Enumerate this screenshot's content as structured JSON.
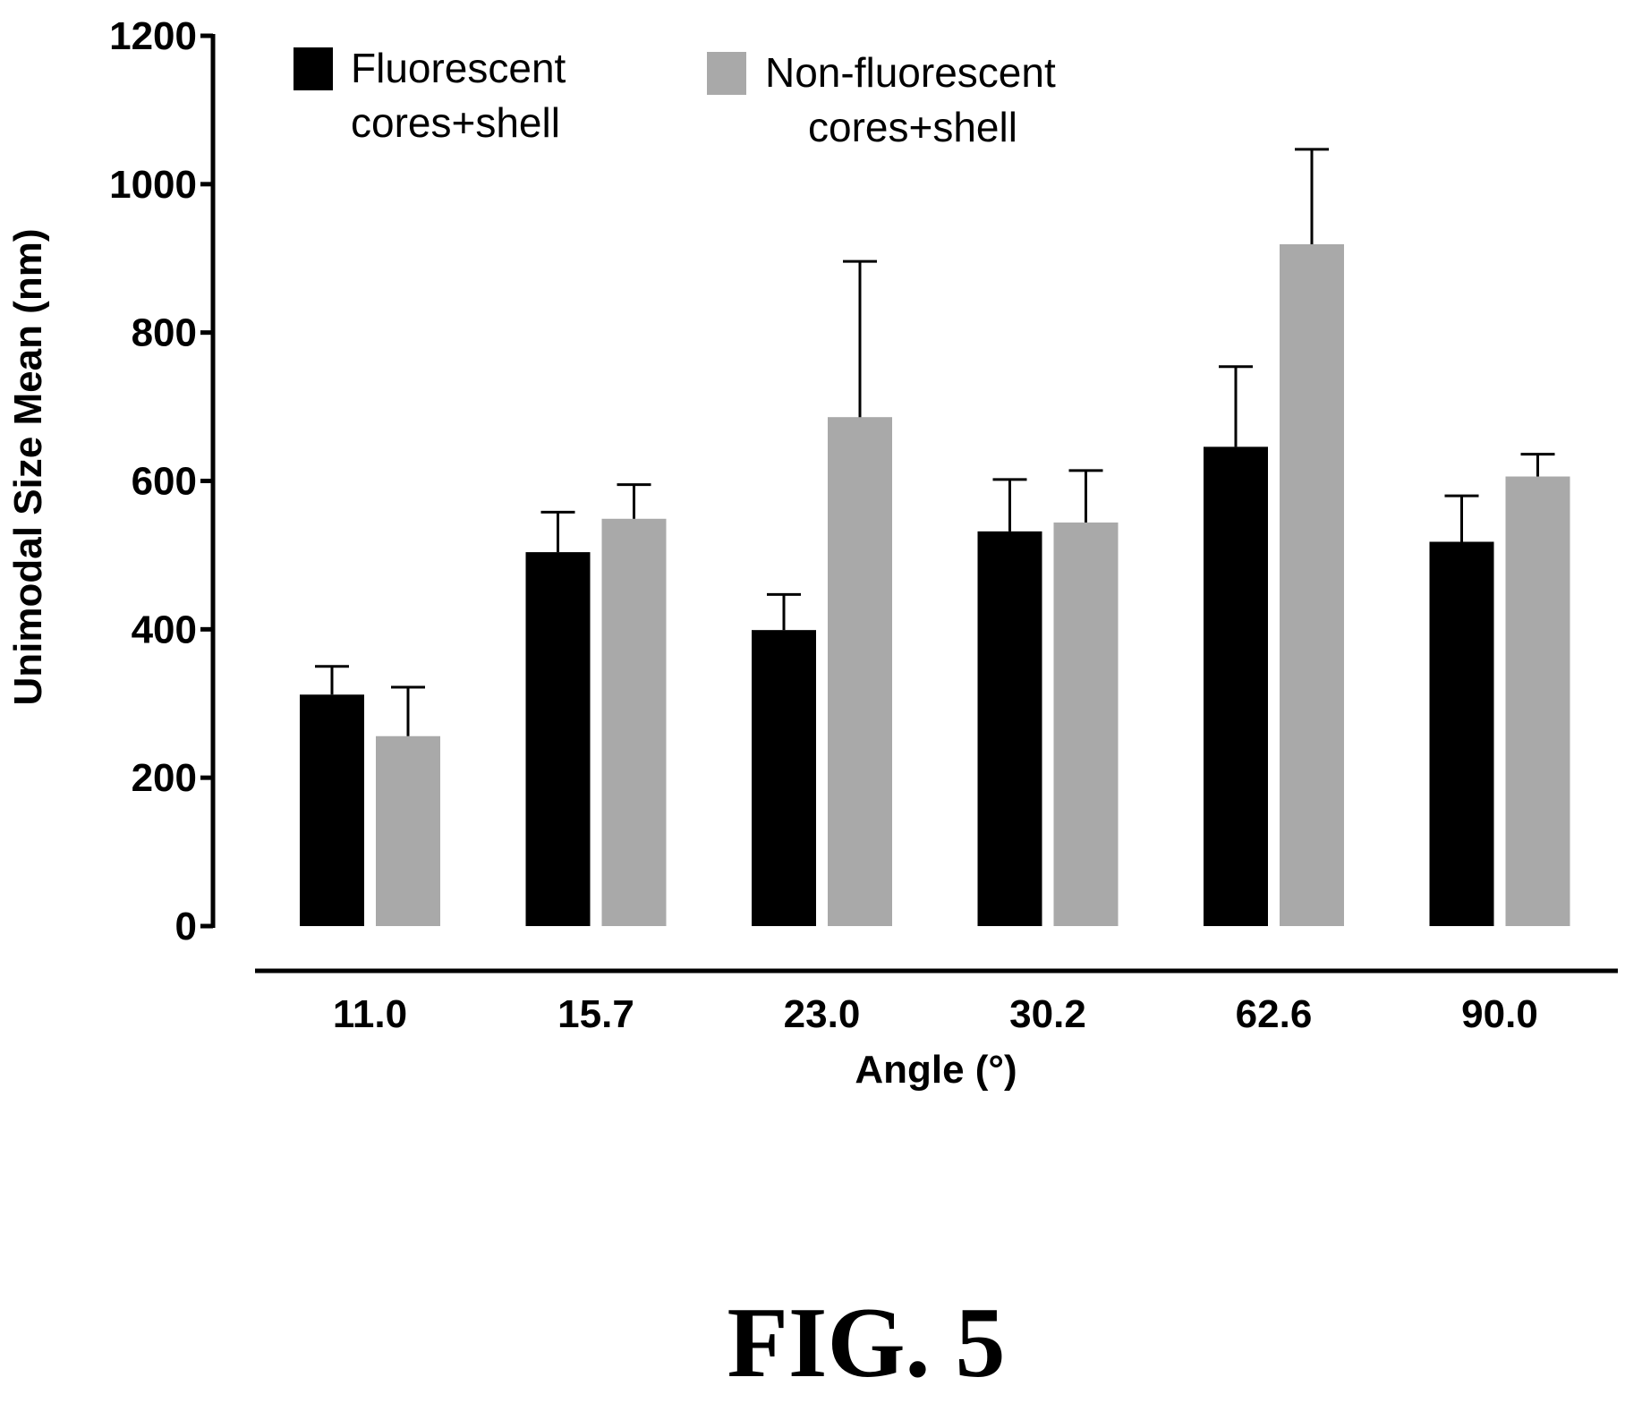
{
  "chart_data": {
    "type": "bar",
    "categories": [
      "11.0",
      "15.7",
      "23.0",
      "30.2",
      "62.6",
      "90.0"
    ],
    "series": [
      {
        "name": "Fluorescent cores+shell",
        "name_lines": [
          "Fluorescent",
          "cores+shell"
        ],
        "color": "#000000",
        "values": [
          312,
          504,
          399,
          532,
          646,
          518
        ],
        "error": [
          38,
          54,
          48,
          70,
          108,
          62
        ]
      },
      {
        "name": "Non-fluorescent cores+shell",
        "name_lines": [
          "Non-fluorescent",
          "cores+shell"
        ],
        "color": "#a9a9a9",
        "values": [
          256,
          549,
          686,
          544,
          919,
          606
        ],
        "error": [
          66,
          46,
          210,
          70,
          128,
          30
        ]
      }
    ],
    "xlabel": "Angle (°)",
    "ylabel": "Unimodal Size Mean (nm)",
    "ylim": [
      0,
      1200
    ],
    "yticks": [
      0,
      200,
      400,
      600,
      800,
      1000,
      1200
    ],
    "grid": false,
    "legend": "top-left",
    "error_bars": "upper"
  },
  "caption": "FIG. 5"
}
